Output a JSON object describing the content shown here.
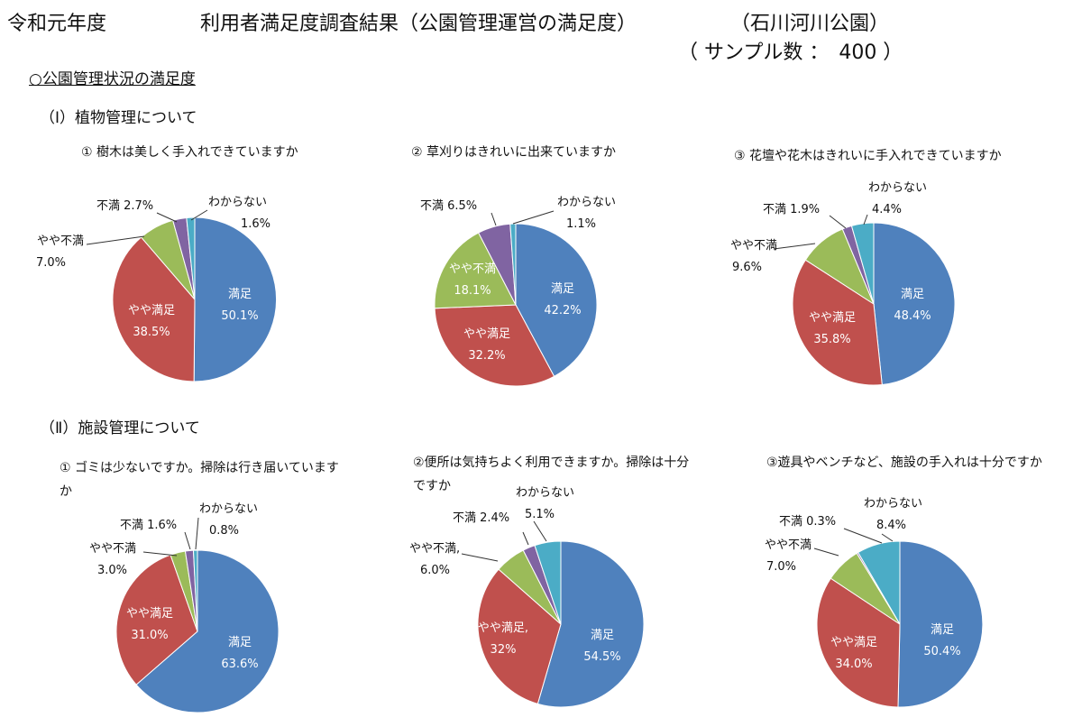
{
  "header": {
    "year": "令和元年度",
    "title": "利用者満足度調査結果（公園管理運営の満足度）",
    "park": "（石川河川公園）",
    "sample": "（ サンプル数 ：　400 ）"
  },
  "section_title": "○公園管理状況の満足度",
  "groups": {
    "plants": "（Ⅰ）植物管理について",
    "facilities": "（Ⅱ）施設管理について"
  },
  "colors": {
    "satisfied": "#4F81BD",
    "somewhat_satisfied": "#C0504D",
    "somewhat_dissatisfied": "#9BBB59",
    "dissatisfied": "#8064A2",
    "unknown": "#4BACC6"
  },
  "chart_data": [
    {
      "type": "pie",
      "title": "① 樹木は美しく手入れできていますか",
      "slices": [
        {
          "category": "満足",
          "value": 50.1,
          "pct_label": "50.1%"
        },
        {
          "category": "やや満足",
          "value": 38.5,
          "pct_label": "38.5%"
        },
        {
          "category": "やや不満",
          "value": 7.0,
          "pct_label": "7.0%"
        },
        {
          "category": "不満",
          "value": 2.7,
          "pct_label": "2.7%"
        },
        {
          "category": "わからない",
          "value": 1.6,
          "pct_label": "1.6%"
        }
      ]
    },
    {
      "type": "pie",
      "title": "② 草刈りはきれいに出来ていますか",
      "slices": [
        {
          "category": "満足",
          "value": 42.2,
          "pct_label": "42.2%"
        },
        {
          "category": "やや満足",
          "value": 32.2,
          "pct_label": "32.2%"
        },
        {
          "category": "やや不満",
          "value": 18.1,
          "pct_label": "18.1%"
        },
        {
          "category": "不満",
          "value": 6.5,
          "pct_label": "6.5%"
        },
        {
          "category": "わからない",
          "value": 1.1,
          "pct_label": "1.1%"
        }
      ]
    },
    {
      "type": "pie",
      "title": "③ 花壇や花木はきれいに手入れできていますか",
      "slices": [
        {
          "category": "満足",
          "value": 48.4,
          "pct_label": "48.4%"
        },
        {
          "category": "やや満足",
          "value": 35.8,
          "pct_label": "35.8%"
        },
        {
          "category": "やや不満",
          "value": 9.6,
          "pct_label": "9.6%"
        },
        {
          "category": "不満",
          "value": 1.9,
          "pct_label": "1.9%"
        },
        {
          "category": "わからない",
          "value": 4.4,
          "pct_label": "4.4%"
        }
      ]
    },
    {
      "type": "pie",
      "title": "① ゴミは少ないですか。掃除は行き届いていますか",
      "slices": [
        {
          "category": "満足",
          "value": 63.6,
          "pct_label": "63.6%"
        },
        {
          "category": "やや満足",
          "value": 31.0,
          "pct_label": "31.0%"
        },
        {
          "category": "やや不満",
          "value": 3.0,
          "pct_label": "3.0%"
        },
        {
          "category": "不満",
          "value": 1.6,
          "pct_label": "1.6%"
        },
        {
          "category": "わからない",
          "value": 0.8,
          "pct_label": "0.8%"
        }
      ]
    },
    {
      "type": "pie",
      "title": "②便所は気持ちよく利用できますか。掃除は十分ですか",
      "slices": [
        {
          "category": "満足",
          "value": 54.5,
          "pct_label": "54.5%"
        },
        {
          "category": "やや満足,",
          "value": 32.0,
          "pct_label": "32%"
        },
        {
          "category": "やや不満,",
          "value": 6.0,
          "pct_label": "6.0%"
        },
        {
          "category": "不満",
          "value": 2.4,
          "pct_label": "2.4%"
        },
        {
          "category": "わからない",
          "value": 5.1,
          "pct_label": "5.1%"
        }
      ]
    },
    {
      "type": "pie",
      "title": "③遊具やベンチなど、施設の手入れは十分ですか",
      "slices": [
        {
          "category": "満足",
          "value": 50.4,
          "pct_label": "50.4%"
        },
        {
          "category": "やや満足",
          "value": 34.0,
          "pct_label": "34.0%"
        },
        {
          "category": "やや不満",
          "value": 7.0,
          "pct_label": "7.0%"
        },
        {
          "category": "不満",
          "value": 0.3,
          "pct_label": "0.3%"
        },
        {
          "category": "わからない",
          "value": 8.4,
          "pct_label": "8.4%"
        }
      ]
    }
  ]
}
